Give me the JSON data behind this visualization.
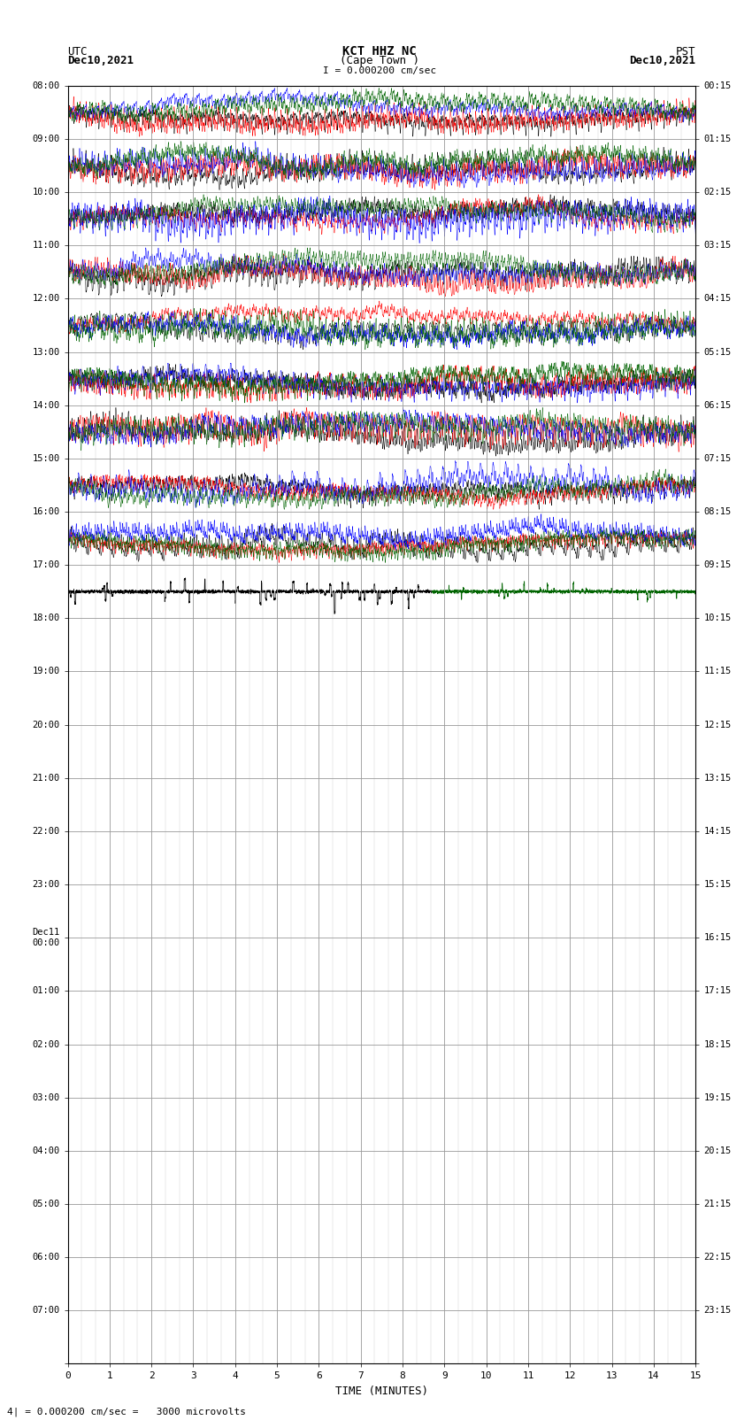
{
  "title_line1": "KCT HHZ NC",
  "title_line2": "(Cape Town )",
  "scale_label": "I = 0.000200 cm/sec",
  "footer_label": "4| = 0.000200 cm/sec =   3000 microvolts",
  "xlabel": "TIME (MINUTES)",
  "left_timezone": "UTC",
  "left_date": "Dec10,2021",
  "right_timezone": "PST",
  "right_date": "Dec10,2021",
  "left_yticks_labels": [
    "08:00",
    "09:00",
    "10:00",
    "11:00",
    "12:00",
    "13:00",
    "14:00",
    "15:00",
    "16:00",
    "17:00",
    "18:00",
    "19:00",
    "20:00",
    "21:00",
    "22:00",
    "23:00",
    "Dec11\n00:00",
    "01:00",
    "02:00",
    "03:00",
    "04:00",
    "05:00",
    "06:00",
    "07:00",
    ""
  ],
  "right_yticks_labels": [
    "00:15",
    "01:15",
    "02:15",
    "03:15",
    "04:15",
    "05:15",
    "06:15",
    "07:15",
    "08:15",
    "09:15",
    "10:15",
    "11:15",
    "12:15",
    "13:15",
    "14:15",
    "15:15",
    "16:15",
    "17:15",
    "18:15",
    "19:15",
    "20:15",
    "21:15",
    "22:15",
    "23:15",
    ""
  ],
  "num_rows": 24,
  "active_rows": 9,
  "minutes_per_row": 15,
  "xticks": [
    0,
    1,
    2,
    3,
    4,
    5,
    6,
    7,
    8,
    9,
    10,
    11,
    12,
    13,
    14,
    15
  ],
  "bg_color": "#ffffff",
  "signal_colors": [
    "#000000",
    "#ff0000",
    "#0000ff",
    "#006400"
  ],
  "figsize": [
    8.5,
    16.13
  ],
  "dpi": 100
}
